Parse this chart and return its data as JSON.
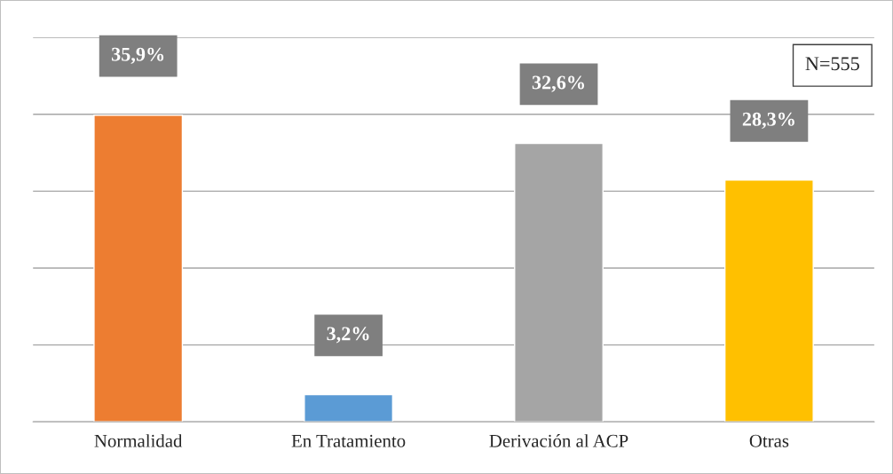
{
  "chart_data": {
    "type": "bar",
    "categories": [
      "Normalidad",
      "En Tratamiento",
      "Derivación al ACP",
      "Otras"
    ],
    "values": [
      35.9,
      3.2,
      32.6,
      28.3
    ],
    "colors": [
      "#ed7d31",
      "#5b9bd5",
      "#a5a5a5",
      "#ffc000"
    ],
    "value_labels": [
      "35,9%",
      "3,2%",
      "32,6%",
      "28,3%"
    ],
    "ylim": [
      0,
      45
    ],
    "yticks": [
      {
        "value": 0,
        "label": null
      },
      {
        "value": 9,
        "label": null
      },
      {
        "value": 18,
        "label": null
      },
      {
        "value": 27,
        "label": null
      },
      {
        "value": 36,
        "label": null
      },
      {
        "value": 45,
        "label": null
      }
    ],
    "grid": "y",
    "tick_labels": "x",
    "legend": false,
    "annotations": [
      "N=555"
    ]
  }
}
